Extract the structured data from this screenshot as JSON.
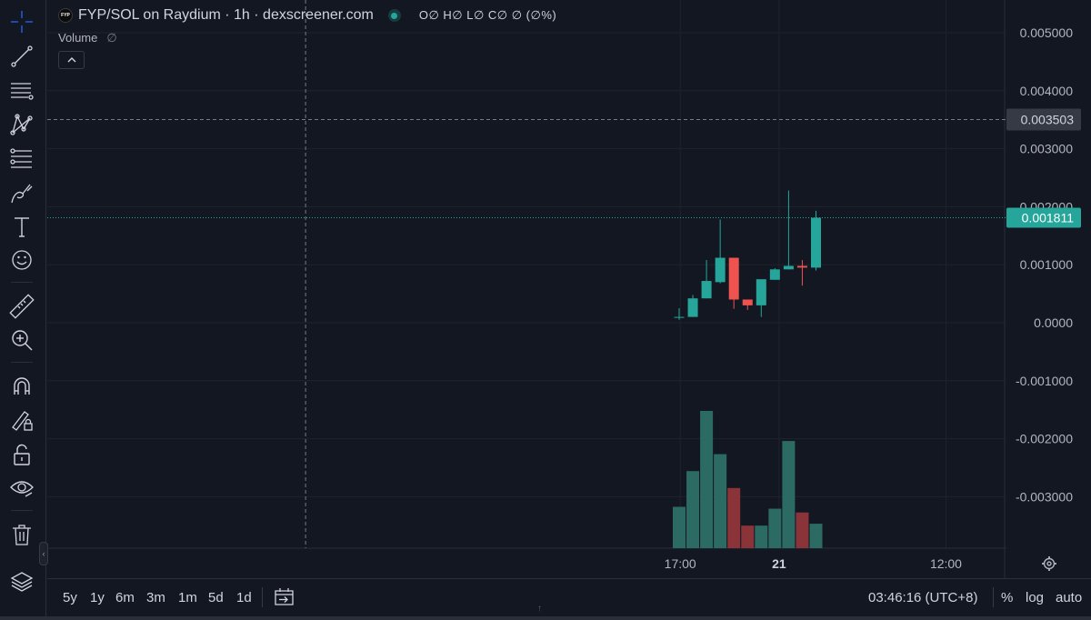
{
  "header": {
    "symbol_logo_text": "FYP",
    "title": "FYP/SOL on Raydium · 1h · dexscreener.com",
    "ohlc": "O∅ H∅ L∅ C∅ ∅ (∅%)"
  },
  "volume_legend": {
    "label": "Volume",
    "value": "∅"
  },
  "legend_toggle_icon": "chevron-up-icon",
  "toolbar_icons": [
    "crosshair-icon",
    "trend-line-icon",
    "horizontal-lines-icon",
    "pattern-icon",
    "fib-icon",
    "brush-icon",
    "text-icon",
    "emoji-icon",
    "ruler-icon",
    "zoom-in-icon",
    "magnet-icon",
    "lock-drawing-icon",
    "unlock-icon",
    "eye-icon",
    "trash-icon",
    "layers-icon"
  ],
  "bottom_bar": {
    "ranges": [
      "5y",
      "1y",
      "6m",
      "3m",
      "1m",
      "5d",
      "1d"
    ],
    "clock": "03:46:16 (UTC+8)",
    "scale_options": [
      "%",
      "log",
      "auto"
    ]
  },
  "colors": {
    "up": "#26a69a",
    "down": "#ef5350",
    "vol_up": "#2c6b63",
    "vol_down": "#8a3338",
    "background": "#131722",
    "grid": "#1f232e",
    "crosshair": "#787b86",
    "accent": "#2962ff"
  },
  "chart_data": {
    "type": "candlestick",
    "interval": "1h",
    "yaxis": {
      "ticks": [
        0.005,
        0.004,
        0.003,
        0.002,
        0.001,
        0.0,
        -0.001,
        -0.002,
        -0.003
      ],
      "tick_labels": [
        "0.005000",
        "0.004000",
        "0.003000",
        "0.002000",
        "0.001000",
        "0.0000",
        "-0.001000",
        "-0.002000",
        "-0.003000"
      ],
      "range": [
        -0.0038,
        0.0054
      ],
      "position": "right"
    },
    "xaxis": {
      "tick_labels": [
        "17:00",
        "21",
        "12:00"
      ],
      "tick_slots": [
        0.08,
        7.3,
        19.5
      ]
    },
    "crosshair": {
      "price": 0.003503,
      "label": "0.003503",
      "slot": -27.3
    },
    "last_price": {
      "value": 0.001811,
      "label": "0.001811"
    },
    "candles": [
      {
        "open": 0.0001,
        "high": 0.00025,
        "low": 5e-05,
        "close": 0.0001
      },
      {
        "open": 0.0001,
        "high": 0.00048,
        "low": 0.0001,
        "close": 0.00042
      },
      {
        "open": 0.00042,
        "high": 0.00108,
        "low": 0.00042,
        "close": 0.00072
      },
      {
        "open": 0.0007,
        "high": 0.00178,
        "low": 0.00068,
        "close": 0.00112
      },
      {
        "open": 0.00112,
        "high": 0.00112,
        "low": 0.00024,
        "close": 0.0004
      },
      {
        "open": 0.0004,
        "high": 0.0004,
        "low": 0.00022,
        "close": 0.0003
      },
      {
        "open": 0.0003,
        "high": 0.00074,
        "low": 0.0001,
        "close": 0.00075
      },
      {
        "open": 0.00074,
        "high": 0.00094,
        "low": 0.00074,
        "close": 0.00092
      },
      {
        "open": 0.00092,
        "high": 0.00228,
        "low": 0.00092,
        "close": 0.00098
      },
      {
        "open": 0.00098,
        "high": 0.00108,
        "low": 0.00064,
        "close": 0.00095
      },
      {
        "open": 0.00095,
        "high": 0.00193,
        "low": 0.0009,
        "close": 0.00181
      }
    ],
    "volume": {
      "values": [
        0.22,
        0.41,
        0.73,
        0.5,
        0.32,
        0.12,
        0.12,
        0.21,
        0.57,
        0.19,
        0.13
      ],
      "scale_max": 1.0
    }
  }
}
